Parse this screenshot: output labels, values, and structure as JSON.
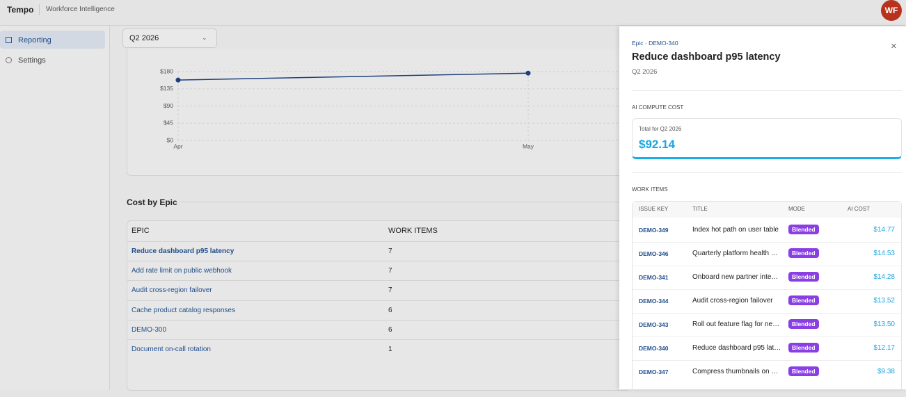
{
  "header": {
    "brand": "Tempo",
    "product": "Workforce Intelligence",
    "avatar": "WF"
  },
  "sidebar": {
    "items": [
      "Reporting",
      "Settings"
    ]
  },
  "period_select": "Q2 2026",
  "chart": {
    "type": "line",
    "categories": [
      "Apr",
      "May"
    ],
    "values": [
      158,
      176
    ],
    "color": "#1d3f7a",
    "ylim": [
      0,
      180
    ],
    "yticks": [
      {
        "value": 0,
        "label": "$0"
      },
      {
        "value": 45,
        "label": "$45"
      },
      {
        "value": 90,
        "label": "$90"
      },
      {
        "value": 135,
        "label": "$135"
      },
      {
        "value": 180,
        "label": "$180"
      }
    ],
    "grid": true
  },
  "cost_by_epic": {
    "title": "Cost by Epic",
    "columns": [
      "EPIC",
      "WORK ITEMS"
    ],
    "rows": [
      [
        "Reduce dashboard p95 latency",
        7
      ],
      [
        "Add rate limit on public webhook",
        7
      ],
      [
        "Audit cross-region failover",
        7
      ],
      [
        "Cache product catalog responses",
        6
      ],
      [
        "DEMO-300",
        6
      ],
      [
        "Document on-call rotation",
        1
      ]
    ]
  },
  "panel": {
    "eyebrow": "Epic · DEMO-340",
    "title": "Reduce dashboard p95 latency",
    "subtitle": "Q2 2026",
    "cost_section": "AI COMPUTE COST",
    "cost_caption": "Total for Q2 2026",
    "cost_total": "$92.14",
    "items_section": "WORK ITEMS",
    "columns": [
      "ISSUE KEY",
      "TITLE",
      "MODE",
      "AI COST"
    ],
    "rows": [
      [
        "DEMO-349",
        "Index hot path on user table",
        "Blended",
        "$14.77"
      ],
      [
        "DEMO-346",
        "Quarterly platform health …",
        "Blended",
        "$14.53"
      ],
      [
        "DEMO-341",
        "Onboard new partner inte…",
        "Blended",
        "$14.28"
      ],
      [
        "DEMO-344",
        "Audit cross-region failover",
        "Blended",
        "$13.52"
      ],
      [
        "DEMO-343",
        "Roll out feature flag for ne…",
        "Blended",
        "$13.50"
      ],
      [
        "DEMO-340",
        "Reduce dashboard p95 lat…",
        "Blended",
        "$12.17"
      ],
      [
        "DEMO-347",
        "Compress thumbnails on …",
        "Blended",
        "$9.38"
      ]
    ]
  }
}
